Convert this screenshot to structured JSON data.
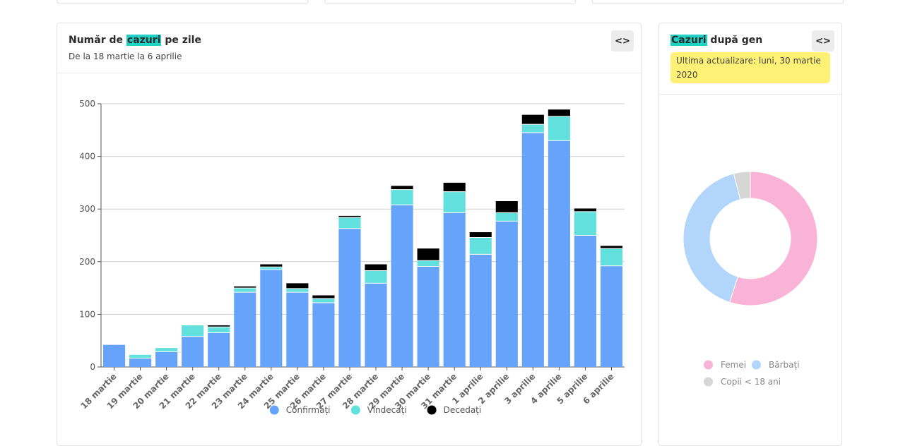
{
  "top_cards": [
    {},
    {},
    {}
  ],
  "daily_card": {
    "title_before": "Număr de ",
    "title_highlight": "cazuri",
    "title_after": " pe zile",
    "subtitle": "De la 18 martie la 6 aprilie",
    "embed_button": "<>"
  },
  "gender_card": {
    "title_highlight": "Cazuri",
    "title_after": " după gen",
    "update_badge": "Ultima actualizare: luni, 30 martie 2020",
    "embed_button": "<>"
  },
  "chart_data": [
    {
      "type": "bar",
      "stacked": true,
      "categories": [
        "18 martie",
        "19 martie",
        "20 martie",
        "21 martie",
        "22 martie",
        "23 martie",
        "24 martie",
        "25 martie",
        "26 martie",
        "27 martie",
        "28 martie",
        "29 martie",
        "30 martie",
        "31 martie",
        "1 aprilie",
        "2 aprilie",
        "3 aprilie",
        "4 aprilie",
        "5 aprilie",
        "6 aprilie"
      ],
      "series": [
        {
          "name": "Confirmați",
          "color": "#66a3fa",
          "values": [
            42,
            17,
            29,
            58,
            65,
            142,
            185,
            142,
            122,
            263,
            159,
            308,
            191,
            293,
            214,
            277,
            445,
            430,
            250,
            192
          ]
        },
        {
          "name": "Vindecați",
          "color": "#62e0dd",
          "values": [
            0,
            6,
            7,
            21,
            11,
            8,
            5,
            7,
            8,
            21,
            24,
            29,
            11,
            40,
            32,
            16,
            16,
            46,
            45,
            33
          ]
        },
        {
          "name": "Decedați",
          "color": "#000000",
          "values": [
            0,
            0,
            0,
            0,
            3,
            3,
            5,
            10,
            6,
            3,
            12,
            7,
            23,
            17,
            10,
            22,
            18,
            13,
            6,
            5
          ]
        }
      ],
      "ylim": [
        0,
        500
      ],
      "yticks": [
        0,
        100,
        200,
        300,
        400,
        500
      ],
      "grid": true,
      "legend": "bottom"
    },
    {
      "type": "pie",
      "donut": true,
      "slices": [
        {
          "label": "Femei",
          "color": "#f9b3d6",
          "value": 55
        },
        {
          "label": "Bărbați",
          "color": "#b1d5fb",
          "value": 41
        },
        {
          "label": "Copii < 18 ani",
          "color": "#d6d6d6",
          "value": 4
        }
      ],
      "legend": "bottom"
    }
  ]
}
